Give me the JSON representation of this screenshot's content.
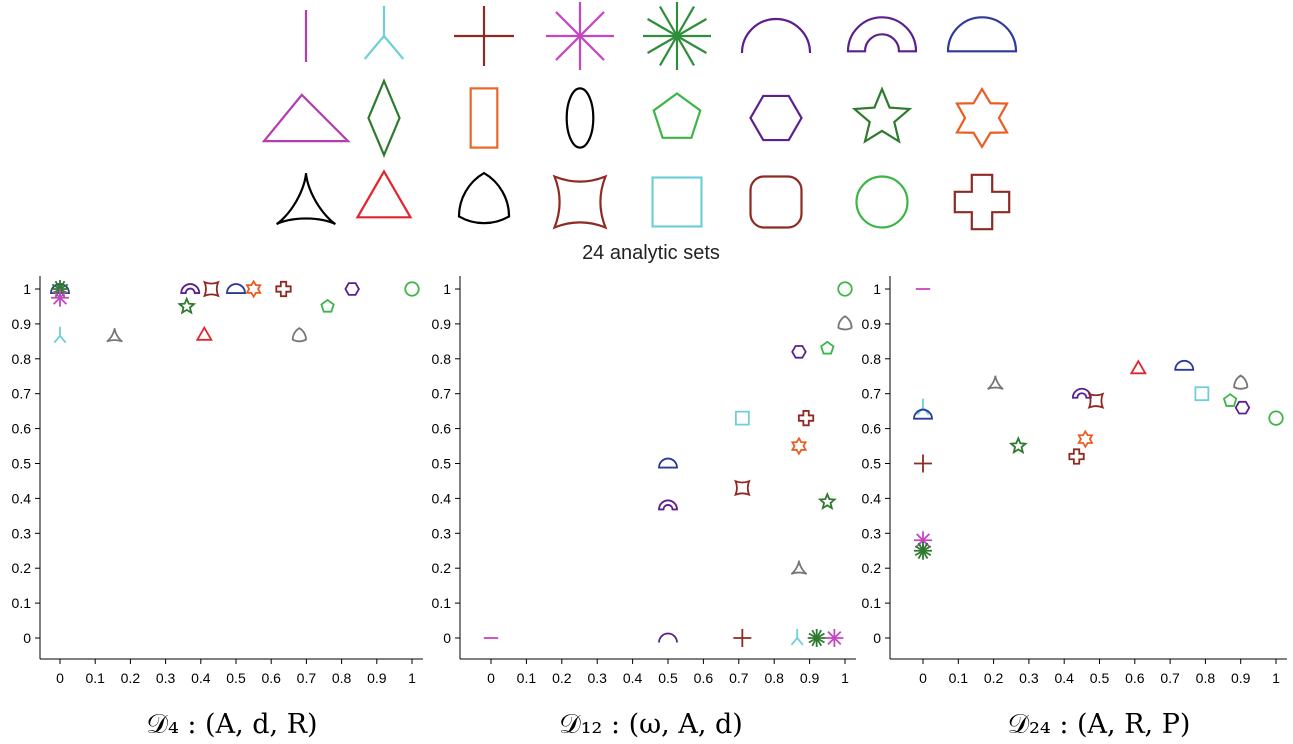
{
  "figure": {
    "caption": "24 analytic sets"
  },
  "legend": {
    "rows": [
      [
        {
          "shape": "segment",
          "color": "#b23cb0"
        },
        {
          "shape": "tripod",
          "color": "#6fcfd8"
        },
        {
          "shape": "plus",
          "color": "#8e2a22"
        },
        {
          "shape": "asterisk8",
          "color": "#c446c1"
        },
        {
          "shape": "asterisk12",
          "color": "#2f8e3a"
        },
        {
          "shape": "arc",
          "color": "#5c1f8e"
        },
        {
          "shape": "half-annulus",
          "color": "#5c1f8e"
        },
        {
          "shape": "half-disk",
          "color": "#2c3a9a"
        }
      ],
      [
        {
          "shape": "triangle-obtuse",
          "color": "#b23cb0"
        },
        {
          "shape": "rhombus",
          "color": "#2f7a2f"
        },
        {
          "shape": "rectangle",
          "color": "#e8672a"
        },
        {
          "shape": "ellipse",
          "color": "#000000"
        },
        {
          "shape": "pentagon",
          "color": "#3db548"
        },
        {
          "shape": "hexagon",
          "color": "#5c1f8e"
        },
        {
          "shape": "star5",
          "color": "#2f7a2f"
        },
        {
          "shape": "star6",
          "color": "#ec5b21"
        }
      ],
      [
        {
          "shape": "deltoid",
          "color": "#000000"
        },
        {
          "shape": "triangle-equilateral",
          "color": "#e1252d"
        },
        {
          "shape": "reuleaux",
          "color": "#000000"
        },
        {
          "shape": "concave-square",
          "color": "#8e2a22"
        },
        {
          "shape": "square",
          "color": "#6fcfd8"
        },
        {
          "shape": "squircle",
          "color": "#8e2a22"
        },
        {
          "shape": "circle",
          "color": "#3db548"
        },
        {
          "shape": "cross",
          "color": "#8e2a22"
        }
      ]
    ]
  },
  "chart_data": [
    {
      "type": "scatter",
      "title": "𝒟₄ : (A, d, R)",
      "xlim": [
        0,
        1
      ],
      "ylim": [
        0,
        1
      ],
      "xticks": [
        "0",
        "0.1",
        "0.2",
        "0.3",
        "0.4",
        "0.5",
        "0.6",
        "0.7",
        "0.8",
        "0.9",
        "1"
      ],
      "yticks": [
        "0",
        "0.1",
        "0.2",
        "0.3",
        "0.4",
        "0.5",
        "0.6",
        "0.7",
        "0.8",
        "0.9",
        "1"
      ],
      "grid": false,
      "points": [
        {
          "x": 0.0,
          "y": 1.0,
          "marker": "half-disk",
          "color": "#2c3a9a"
        },
        {
          "x": 0.0,
          "y": 1.0,
          "marker": "asterisk12",
          "color": "#2f7a2f"
        },
        {
          "x": 0.0,
          "y": 0.975,
          "marker": "asterisk8",
          "color": "#c446c1"
        },
        {
          "x": 0.0,
          "y": 0.866,
          "marker": "tripod",
          "color": "#6fcfd8"
        },
        {
          "x": 0.155,
          "y": 0.866,
          "marker": "deltoid",
          "color": "#777777"
        },
        {
          "x": 0.37,
          "y": 1.0,
          "marker": "half-annulus",
          "color": "#5c1f8e"
        },
        {
          "x": 0.36,
          "y": 0.95,
          "marker": "star5",
          "color": "#2f7a2f"
        },
        {
          "x": 0.43,
          "y": 1.0,
          "marker": "concave-square",
          "color": "#8e2a22"
        },
        {
          "x": 0.41,
          "y": 0.866,
          "marker": "triangle-equilateral",
          "color": "#e1252d"
        },
        {
          "x": 0.5,
          "y": 1.0,
          "marker": "half-disk",
          "color": "#2c3a9a"
        },
        {
          "x": 0.55,
          "y": 1.0,
          "marker": "star6",
          "color": "#ec5b21"
        },
        {
          "x": 0.635,
          "y": 1.0,
          "marker": "cross",
          "color": "#8e2a22"
        },
        {
          "x": 0.68,
          "y": 0.866,
          "marker": "reuleaux",
          "color": "#777777"
        },
        {
          "x": 0.76,
          "y": 0.95,
          "marker": "pentagon",
          "color": "#3db548"
        },
        {
          "x": 0.83,
          "y": 1.0,
          "marker": "hexagon",
          "color": "#5c1f8e"
        },
        {
          "x": 1.0,
          "y": 1.0,
          "marker": "circle",
          "color": "#3db548"
        }
      ]
    },
    {
      "type": "scatter",
      "title": "𝒟₁₂ : (ω, A, d)",
      "xlim": [
        0,
        1
      ],
      "ylim": [
        0,
        1
      ],
      "xticks": [
        "0",
        "0.1",
        "0.2",
        "0.3",
        "0.4",
        "0.5",
        "0.6",
        "0.7",
        "0.8",
        "0.9",
        "1"
      ],
      "yticks": [
        "0",
        "0.1",
        "0.2",
        "0.3",
        "0.4",
        "0.5",
        "0.6",
        "0.7",
        "0.8",
        "0.9",
        "1"
      ],
      "grid": false,
      "points": [
        {
          "x": 0.0,
          "y": 0.0,
          "marker": "segment-h",
          "color": "#c446c1"
        },
        {
          "x": 0.5,
          "y": 0.0,
          "marker": "arc",
          "color": "#5c1f8e"
        },
        {
          "x": 0.71,
          "y": 0.0,
          "marker": "plus",
          "color": "#8e2a22"
        },
        {
          "x": 0.865,
          "y": 0.0,
          "marker": "tripod",
          "color": "#6fcfd8"
        },
        {
          "x": 0.92,
          "y": 0.0,
          "marker": "asterisk12",
          "color": "#2f7a2f"
        },
        {
          "x": 0.97,
          "y": 0.0,
          "marker": "asterisk8",
          "color": "#c446c1"
        },
        {
          "x": 0.5,
          "y": 0.5,
          "marker": "half-disk",
          "color": "#2c3a9a"
        },
        {
          "x": 0.5,
          "y": 0.38,
          "marker": "half-annulus",
          "color": "#5c1f8e"
        },
        {
          "x": 0.71,
          "y": 0.63,
          "marker": "square",
          "color": "#6fcfd8"
        },
        {
          "x": 0.71,
          "y": 0.43,
          "marker": "concave-square",
          "color": "#8e2a22"
        },
        {
          "x": 0.87,
          "y": 0.82,
          "marker": "hexagon",
          "color": "#5c1f8e"
        },
        {
          "x": 0.87,
          "y": 0.55,
          "marker": "star6",
          "color": "#ec5b21"
        },
        {
          "x": 0.87,
          "y": 0.2,
          "marker": "deltoid",
          "color": "#777777"
        },
        {
          "x": 0.89,
          "y": 0.63,
          "marker": "cross",
          "color": "#8e2a22"
        },
        {
          "x": 0.95,
          "y": 0.83,
          "marker": "pentagon",
          "color": "#3db548"
        },
        {
          "x": 0.95,
          "y": 0.39,
          "marker": "star5",
          "color": "#2f7a2f"
        },
        {
          "x": 1.0,
          "y": 1.0,
          "marker": "circle",
          "color": "#3db548"
        },
        {
          "x": 1.0,
          "y": 0.9,
          "marker": "reuleaux",
          "color": "#777777"
        }
      ]
    },
    {
      "type": "scatter",
      "title": "𝒟₂₄ : (A, R, P)",
      "xlim": [
        0,
        1
      ],
      "ylim": [
        0,
        1
      ],
      "xticks": [
        "0",
        "0.1",
        "0.2",
        "0.3",
        "0.4",
        "0.5",
        "0.6",
        "0.7",
        "0.8",
        "0.9",
        "1"
      ],
      "yticks": [
        "0",
        "0.1",
        "0.2",
        "0.3",
        "0.4",
        "0.5",
        "0.6",
        "0.7",
        "0.8",
        "0.9",
        "1"
      ],
      "grid": false,
      "points": [
        {
          "x": 0.0,
          "y": 1.0,
          "marker": "segment-h",
          "color": "#c446c1"
        },
        {
          "x": 0.0,
          "y": 0.66,
          "marker": "tripod",
          "color": "#6fcfd8"
        },
        {
          "x": 0.0,
          "y": 0.64,
          "marker": "half-disk",
          "color": "#2c3a9a"
        },
        {
          "x": 0.0,
          "y": 0.5,
          "marker": "plus",
          "color": "#8e2a22"
        },
        {
          "x": 0.0,
          "y": 0.28,
          "marker": "asterisk8",
          "color": "#c446c1"
        },
        {
          "x": 0.0,
          "y": 0.25,
          "marker": "asterisk12",
          "color": "#2f7a2f"
        },
        {
          "x": 0.205,
          "y": 0.73,
          "marker": "deltoid",
          "color": "#777777"
        },
        {
          "x": 0.27,
          "y": 0.55,
          "marker": "star5",
          "color": "#2f7a2f"
        },
        {
          "x": 0.45,
          "y": 0.7,
          "marker": "half-annulus",
          "color": "#5c1f8e"
        },
        {
          "x": 0.49,
          "y": 0.68,
          "marker": "concave-square",
          "color": "#8e2a22"
        },
        {
          "x": 0.46,
          "y": 0.57,
          "marker": "star6",
          "color": "#ec5b21"
        },
        {
          "x": 0.435,
          "y": 0.52,
          "marker": "cross",
          "color": "#8e2a22"
        },
        {
          "x": 0.61,
          "y": 0.77,
          "marker": "triangle-equilateral",
          "color": "#e1252d"
        },
        {
          "x": 0.74,
          "y": 0.78,
          "marker": "half-disk",
          "color": "#2c3a9a"
        },
        {
          "x": 0.79,
          "y": 0.7,
          "marker": "square",
          "color": "#6fcfd8"
        },
        {
          "x": 0.87,
          "y": 0.68,
          "marker": "pentagon",
          "color": "#3db548"
        },
        {
          "x": 0.9,
          "y": 0.73,
          "marker": "reuleaux",
          "color": "#777777"
        },
        {
          "x": 0.905,
          "y": 0.66,
          "marker": "hexagon",
          "color": "#5c1f8e"
        },
        {
          "x": 1.0,
          "y": 0.63,
          "marker": "circle",
          "color": "#3db548"
        }
      ]
    }
  ]
}
